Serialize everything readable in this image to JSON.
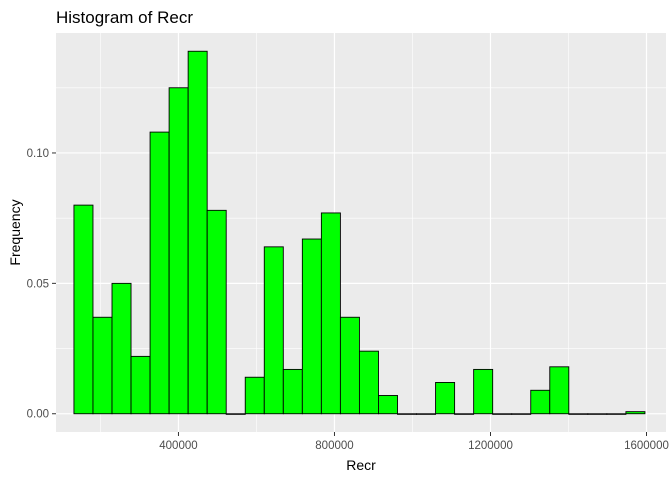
{
  "chart_data": {
    "type": "bar",
    "title": "Histogram of Recr",
    "xlabel": "Recr",
    "ylabel": "Frequency",
    "xlim": [
      86000,
      1650000
    ],
    "ylim": [
      -0.007,
      0.146
    ],
    "xticks": [
      400000,
      800000,
      1200000,
      1600000
    ],
    "xtick_labels": [
      "400000",
      "800000",
      "1200000",
      "1600000"
    ],
    "yticks": [
      0.0,
      0.05,
      0.1
    ],
    "ytick_labels": [
      "0.00",
      "0.05",
      "0.10"
    ],
    "bin_width": 48800,
    "bin_starts": [
      132000,
      180800,
      229600,
      278400,
      327200,
      376000,
      424800,
      473600,
      522400,
      571200,
      620000,
      668800,
      717600,
      766400,
      815200,
      864000,
      912800,
      961600,
      1010400,
      1059200,
      1108000,
      1156800,
      1205600,
      1254400,
      1303200,
      1352000,
      1400800,
      1449600,
      1498400,
      1547200
    ],
    "values": [
      0.08,
      0.037,
      0.05,
      0.022,
      0.108,
      0.125,
      0.139,
      0.078,
      0.0,
      0.014,
      0.064,
      0.017,
      0.067,
      0.077,
      0.037,
      0.024,
      0.007,
      0.0,
      0.0,
      0.012,
      0.0,
      0.017,
      0.0,
      0.0,
      0.009,
      0.018,
      0.0,
      0.0,
      0.0,
      0.0008
    ],
    "bar_fill": "#00FF00",
    "bar_stroke": "#000000",
    "panel_background": "#EBEBEB",
    "grid": true,
    "grid_color": "#FFFFFF",
    "legend": "none"
  }
}
